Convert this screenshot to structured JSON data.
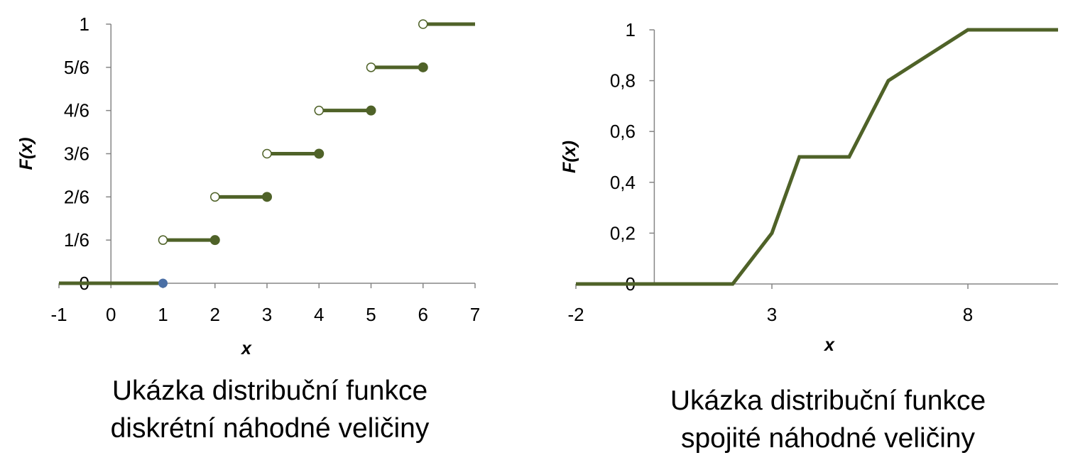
{
  "chart_data": [
    {
      "type": "line",
      "subtype": "step",
      "xlabel": "x",
      "ylabel": "F(x)",
      "xlim": [
        -1,
        7
      ],
      "ylim": [
        0,
        1
      ],
      "x_ticks": [
        -1,
        0,
        1,
        2,
        3,
        4,
        5,
        6,
        7
      ],
      "x_tick_labels": [
        "-1",
        "0",
        "1",
        "2",
        "3",
        "4",
        "5",
        "6",
        "7"
      ],
      "y_ticks": [
        0,
        0.16667,
        0.33333,
        0.5,
        0.66667,
        0.83333,
        1
      ],
      "y_tick_labels": [
        "0",
        "1/6",
        "2/6",
        "3/6",
        "4/6",
        "5/6",
        "1"
      ],
      "segments": [
        {
          "x_start": -1,
          "x_end": 1,
          "y": 0,
          "open_start": false,
          "closed_end": false
        },
        {
          "x_start": 1,
          "x_end": 2,
          "y": 0.16667,
          "open_start": true,
          "closed_end": true
        },
        {
          "x_start": 2,
          "x_end": 3,
          "y": 0.33333,
          "open_start": true,
          "closed_end": true
        },
        {
          "x_start": 3,
          "x_end": 4,
          "y": 0.5,
          "open_start": true,
          "closed_end": true
        },
        {
          "x_start": 4,
          "x_end": 5,
          "y": 0.66667,
          "open_start": true,
          "closed_end": true
        },
        {
          "x_start": 5,
          "x_end": 6,
          "y": 0.83333,
          "open_start": true,
          "closed_end": true
        },
        {
          "x_start": 6,
          "x_end": 7,
          "y": 1,
          "open_start": true,
          "closed_end": false
        }
      ],
      "zero_marker": {
        "x": 1,
        "y": 0
      },
      "grid": false,
      "colors": {
        "line": "#4f6228",
        "zero_marker": "#4a6fa5",
        "axis": "#868686"
      }
    },
    {
      "type": "line",
      "xlabel": "x",
      "ylabel": "F(x)",
      "xlim": [
        -2,
        10.3
      ],
      "ylim": [
        0,
        1
      ],
      "x_ticks": [
        -2,
        3,
        8
      ],
      "x_tick_labels": [
        "-2",
        "3",
        "8"
      ],
      "y_ticks": [
        0,
        0.2,
        0.4,
        0.6,
        0.8,
        1
      ],
      "y_tick_labels": [
        "0",
        "0,2",
        "0,4",
        "0,6",
        "0,8",
        "1"
      ],
      "x": [
        -2,
        2,
        3,
        3.7,
        4.97,
        5.97,
        8,
        10.3
      ],
      "y": [
        0,
        0,
        0.2,
        0.5,
        0.5,
        0.8,
        1,
        1
      ],
      "grid": false,
      "colors": {
        "line": "#4f6228",
        "axis": "#868686"
      }
    }
  ],
  "captions": {
    "left": [
      "Ukázka distribuční funkce",
      "diskrétní náhodné veličiny"
    ],
    "right": [
      "Ukázka distribuční funkce",
      "spojité náhodné veličiny"
    ]
  }
}
